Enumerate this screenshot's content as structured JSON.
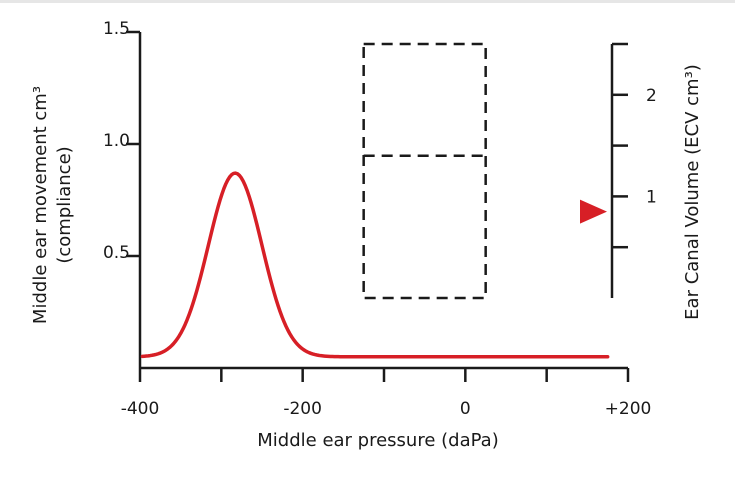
{
  "chart_data": {
    "type": "line",
    "title": "",
    "xlabel": "Middle ear pressure (daPa)",
    "ylabel_line1": "Middle ear movement cm³",
    "ylabel_line2": "(compliance)",
    "y2label": "Ear Canal Volume (ECV cm³)",
    "xlim": [
      -400,
      200
    ],
    "ylim": [
      0,
      1.5
    ],
    "y2lim": [
      0,
      2.5
    ],
    "xticks": [
      -400,
      -300,
      -200,
      -100,
      0,
      100,
      200
    ],
    "xtick_labels": [
      {
        "value": -400,
        "label": "-400"
      },
      {
        "value": -200,
        "label": "-200"
      },
      {
        "value": 0,
        "label": "0"
      },
      {
        "value": 200,
        "label": "+200"
      }
    ],
    "yticks": [
      0.5,
      1.0,
      1.5
    ],
    "ytick_labels": [
      {
        "value": 0.5,
        "label": "0.5"
      },
      {
        "value": 1.0,
        "label": "1.0"
      },
      {
        "value": 1.5,
        "label": "1.5"
      }
    ],
    "y2ticks": [
      0.5,
      1,
      1.5,
      2,
      2.5
    ],
    "y2tick_labels": [
      {
        "value": 1,
        "label": "1"
      },
      {
        "value": 2,
        "label": "2"
      }
    ],
    "series": [
      {
        "name": "compliance",
        "color": "#d71f26",
        "peak_x": -283,
        "peak_y": 0.87,
        "width": 33,
        "baseline": 0.05,
        "x_start": -397,
        "x_end": 175
      }
    ],
    "normal_region": {
      "x_range": [
        -125,
        25
      ],
      "y2_range": [
        0,
        2.5
      ],
      "y2_divider": 1.4
    },
    "ecv_marker": {
      "value": 0.85,
      "color": "#d71f26"
    }
  }
}
